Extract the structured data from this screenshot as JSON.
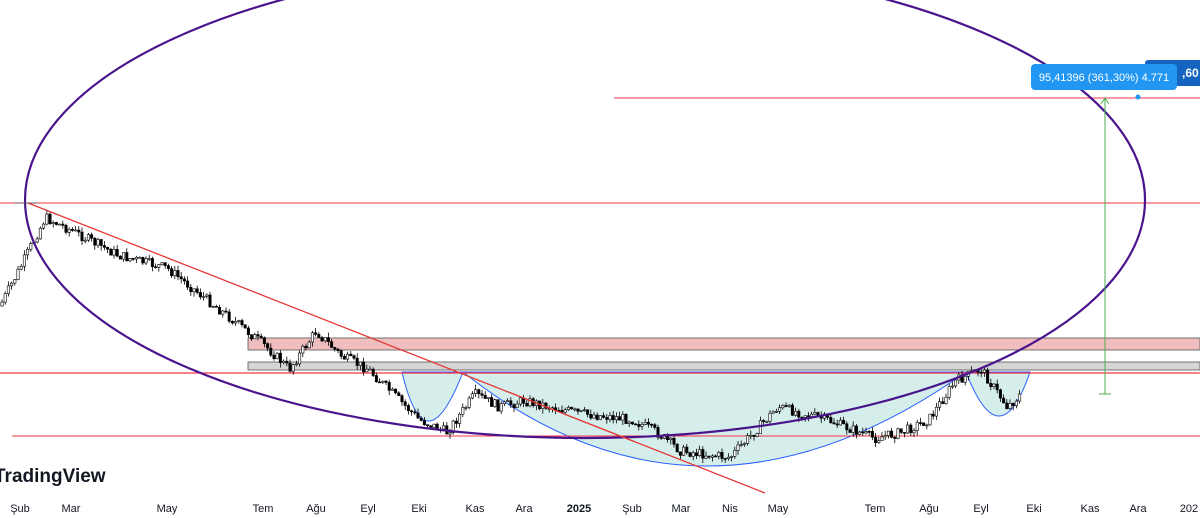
{
  "watermark": "TradingView",
  "colors": {
    "background": "#ffffff",
    "candle_up": "#ffffff",
    "candle_down": "#000000",
    "candle_border": "#000000",
    "level_line": "#f23645",
    "trendline": "#e53935",
    "ellipse": "#4a148c",
    "cup_stroke": "#2962ff",
    "cup_fill": "#b2dfdb",
    "resistance_zone": "#e9a3a3",
    "support_zone": "#c3c3c3",
    "measure": "#4caf50",
    "tooltip_bg": "#2196f3"
  },
  "chart_data": {
    "type": "candlestick",
    "title": "",
    "x_axis_labels": [
      "Şub",
      "Mar",
      "May",
      "Tem",
      "Ağu",
      "Eyl",
      "Eki",
      "Kas",
      "Ara",
      "2025",
      "Şub",
      "Mar",
      "Nis",
      "May",
      "Tem",
      "Ağu",
      "Eyl",
      "Eki",
      "Kas",
      "Ara",
      "202"
    ],
    "year_label": "2025",
    "y_axis": {
      "visible": false
    },
    "price_path": [
      [
        "Şub",
        0.68
      ],
      [
        "Şub",
        0.6
      ],
      [
        "Mar",
        0.62
      ],
      [
        "Mar",
        0.66
      ],
      [
        "May",
        0.68
      ],
      [
        "May",
        0.74
      ],
      [
        "Tem",
        0.8
      ],
      [
        "Tem",
        0.84
      ],
      [
        "Ağu",
        0.78
      ],
      [
        "Ağu",
        0.82
      ],
      [
        "Eyl",
        0.84
      ],
      [
        "Eyl",
        0.88
      ],
      [
        "Eki",
        0.92
      ],
      [
        "Eki",
        0.94
      ],
      [
        "Kas",
        0.88
      ],
      [
        "Kas",
        0.9
      ],
      [
        "Ara",
        0.89
      ],
      [
        "Ara",
        0.9
      ],
      [
        "2025",
        0.91
      ],
      [
        "Şub",
        0.92
      ],
      [
        "Şub",
        0.94
      ],
      [
        "Mar",
        0.97
      ],
      [
        "Nis",
        0.98
      ],
      [
        "Nis",
        0.94
      ],
      [
        "May",
        0.9
      ],
      [
        "May",
        0.92
      ],
      [
        "Tem",
        0.95
      ],
      [
        "Tem",
        0.94
      ],
      [
        "Ağu",
        0.92
      ],
      [
        "Ağu",
        0.86
      ],
      [
        "Eyl",
        0.84
      ],
      [
        "Eyl",
        0.9
      ],
      [
        "Eki",
        0.86
      ]
    ],
    "horizontal_levels": [
      "upper-target",
      "upper-mid",
      "breakout",
      "lower-support"
    ],
    "zones": [
      {
        "name": "resistance-zone"
      },
      {
        "name": "support-zone"
      }
    ],
    "patterns": [
      "ellipse",
      "descending-trendline",
      "cup-left",
      "cup-main",
      "cup-right"
    ],
    "measurement": {
      "label": "95,41396 (361,30%) 4.771",
      "price_tag": ",60"
    }
  }
}
